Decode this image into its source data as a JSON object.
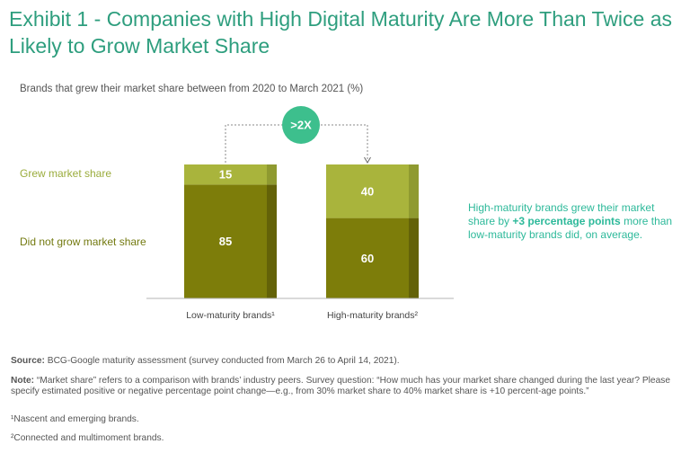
{
  "title": "Exhibit 1 - Companies with High Digital Maturity Are More Than Twice as Likely to Grow Market Share",
  "subtitle": "Brands that grew their market share between from 2020 to March 2021 (%)",
  "badge": ">2X",
  "side_note": {
    "pre": "High-maturity brands grew their market share by ",
    "emph": "+3 percentage points",
    "post": " more than low-maturity brands did, on average."
  },
  "footer": {
    "source_label": "Source:",
    "source_text": " BCG-Google maturity assessment (survey conducted from March 26 to April 14, 2021).",
    "note_label": "Note:",
    "note_text": " “Market share” refers to a comparison with brands’ industry peers. Survey question: “How much has your market share changed during the last year? Please specify estimated positive or negative percentage point change—e.g., from 30% market share to 40% market share is +10 percent-age points.”",
    "footnote1": "¹Nascent and emerging brands.",
    "footnote2": "²Connected and multimoment brands."
  },
  "colors": {
    "grew": "#a9b43c",
    "not_grew": "#7d7d0a",
    "shadow": "#636208",
    "shadow_light": "#8f9a30",
    "badge": "#3dbf8d",
    "title": "#2e9e7e"
  },
  "chart_data": {
    "type": "bar",
    "stacked": true,
    "categories": [
      "Low-maturity brands¹",
      "High-maturity brands²"
    ],
    "series": [
      {
        "name": "Did not grow market share",
        "values": [
          85,
          60
        ]
      },
      {
        "name": "Grew market share",
        "values": [
          15,
          40
        ]
      }
    ],
    "ylim": [
      0,
      100
    ],
    "grid": false,
    "legend": "left"
  }
}
